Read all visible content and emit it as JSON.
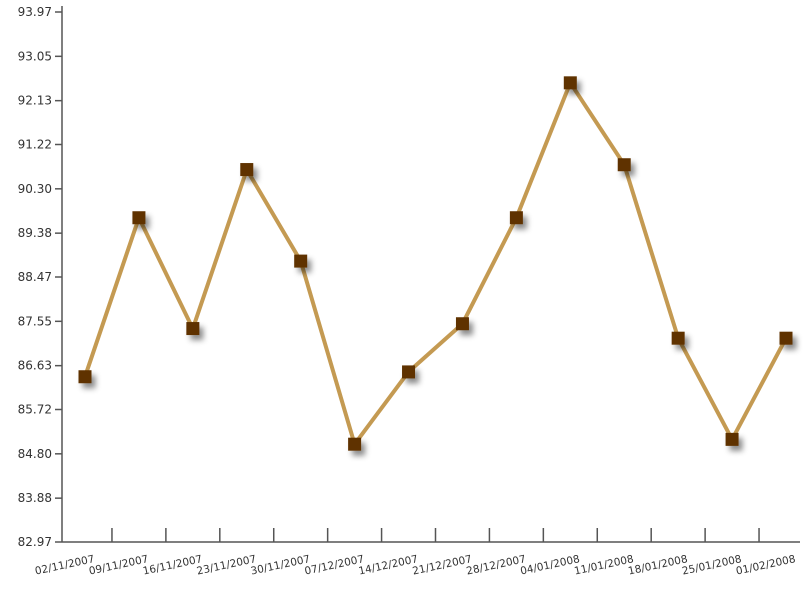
{
  "chart_data": {
    "type": "line",
    "title": "",
    "xlabel": "",
    "ylabel": "",
    "grid": false,
    "legend": "none",
    "x": [
      "02/11/2007",
      "09/11/2007",
      "16/11/2007",
      "23/11/2007",
      "30/11/2007",
      "07/12/2007",
      "14/12/2007",
      "21/12/2007",
      "28/12/2007",
      "04/01/2008",
      "11/01/2008",
      "18/01/2008",
      "25/01/2008",
      "01/02/2008"
    ],
    "y_ticks": [
      "82.97",
      "83.88",
      "84.80",
      "85.72",
      "86.63",
      "87.55",
      "88.47",
      "89.38",
      "90.30",
      "91.22",
      "92.13",
      "93.05",
      "93.97"
    ],
    "ylim": [
      82.97,
      93.97
    ],
    "series": [
      {
        "values": [
          86.4,
          89.7,
          87.4,
          90.7,
          88.8,
          85.0,
          86.5,
          87.5,
          89.7,
          92.5,
          90.8,
          87.2,
          85.1,
          87.2
        ]
      }
    ],
    "colors": {
      "line": "#c49a52",
      "marker": "#5e3200",
      "axis": "#555555"
    }
  }
}
